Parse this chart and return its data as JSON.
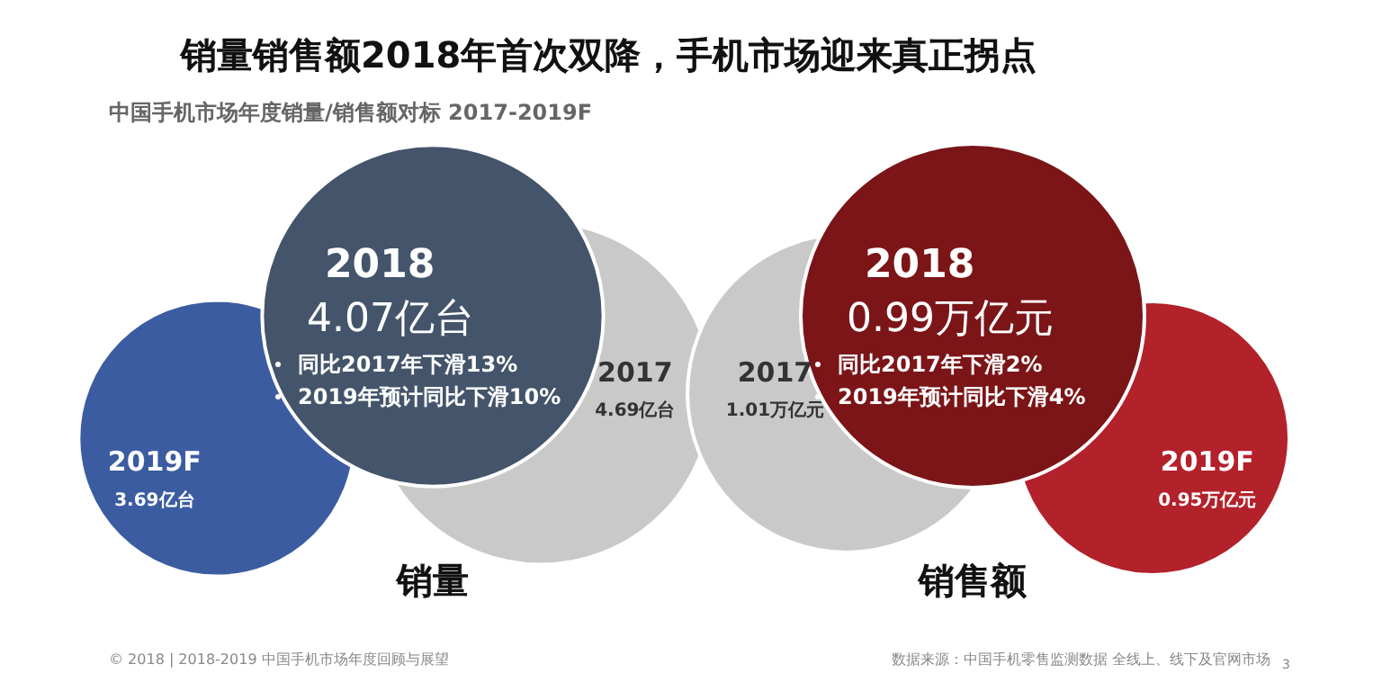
{
  "chart_data": [
    {
      "type": "other",
      "title": "销量销售额2018年首次双降，手机市场迎来真正拐点",
      "subtitle": "中国手机市场年度销量/销售额对标 2017-2019F",
      "xlabel": "销量",
      "categories": [
        "2017",
        "2018",
        "2019F"
      ],
      "values": [
        4.69,
        4.07,
        3.69
      ],
      "value_labels": [
        "4.69亿台",
        "4.07亿台",
        "3.69亿台"
      ],
      "colors": [
        "#c9c9c9",
        "#44546a",
        "#3b5ca0"
      ],
      "annotations": [
        "同比2017年下滑13%",
        "2019年预计同比下滑10%",
        "© 2018 | 2018-2019 中国手机市场年度回顾与展望"
      ]
    },
    {
      "type": "other",
      "xlabel": "销售额",
      "categories": [
        "2017",
        "2018",
        "2019F"
      ],
      "values": [
        1.01,
        0.99,
        0.95
      ],
      "value_labels": [
        "1.01万亿元",
        "0.99万亿元",
        "0.95万亿元"
      ],
      "colors": [
        "#c9c9c9",
        "#7b1518",
        "#b3212b"
      ],
      "annotations": [
        "同比2017年下滑2%",
        "2019年预计同比下滑4%",
        "数据来源：中国手机零售监测数据 全线上、线下及官网市场",
        "3"
      ]
    }
  ]
}
